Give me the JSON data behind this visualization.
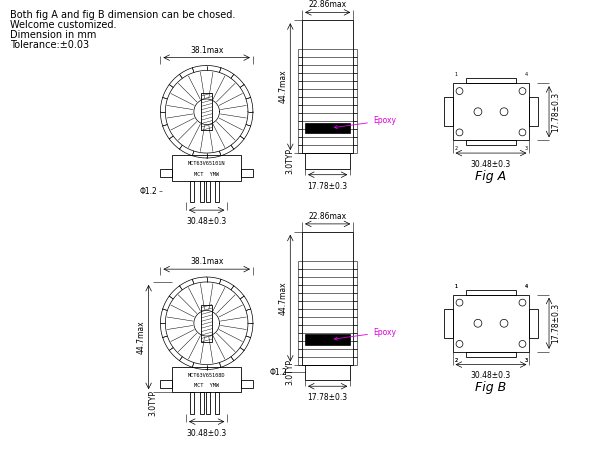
{
  "bg_color": "#ffffff",
  "line_color": "#000000",
  "header_text": [
    "Both fig A and fig B dimension can be chosed.",
    "Welcome customized.",
    "Dimension in mm",
    "Tolerance:±0.03"
  ],
  "fig_a_label": "Fig A",
  "fig_b_label": "Fig B",
  "dim_width_top": "38.1max",
  "dim_width_bot": "30.48±0.3",
  "dim_height": "44.7max",
  "dim_side_w": "22.86max",
  "dim_pin_w": "17.78±0.3",
  "dim_pin_typ": "3.0typ",
  "dim_pin_dia": "Φ1.2",
  "dim_right_w": "30.48±0.3",
  "dim_right_h": "17.78±0.3",
  "dim_3typ": "3.0TYP",
  "epoxy": "Epoxy",
  "label_a": "MCT63V65101N\nMCT  YMW",
  "label_b": "MCT63V65108D\nMCT  YMW"
}
